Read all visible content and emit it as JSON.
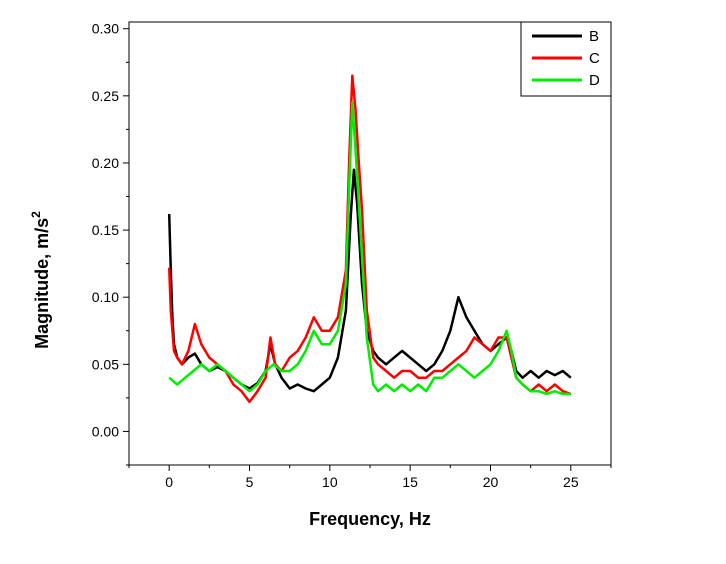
{
  "chart_data": {
    "type": "line",
    "title": "",
    "xlabel": "Frequency, Hz",
    "ylabel_main": "Magnitude, m/s",
    "ylabel_sup": "2",
    "xlim": [
      -2.5,
      27.5
    ],
    "ylim": [
      -0.025,
      0.305
    ],
    "xticks": [
      0,
      5,
      10,
      15,
      20,
      25
    ],
    "xtick_labels": [
      "0",
      "5",
      "10",
      "15",
      "20",
      "25"
    ],
    "yticks": [
      0.0,
      0.05,
      0.1,
      0.15,
      0.2,
      0.25,
      0.3
    ],
    "ytick_labels": [
      "0.00",
      "0.05",
      "0.10",
      "0.15",
      "0.20",
      "0.25",
      "0.30"
    ],
    "legend_position": "top-right",
    "grid": false,
    "series": [
      {
        "name": "B",
        "color": "#000000",
        "points": [
          [
            0.0,
            0.162
          ],
          [
            0.1,
            0.12
          ],
          [
            0.2,
            0.085
          ],
          [
            0.3,
            0.065
          ],
          [
            0.5,
            0.055
          ],
          [
            0.8,
            0.05
          ],
          [
            1.2,
            0.055
          ],
          [
            1.6,
            0.058
          ],
          [
            2.0,
            0.05
          ],
          [
            2.5,
            0.045
          ],
          [
            3.0,
            0.048
          ],
          [
            3.5,
            0.045
          ],
          [
            4.0,
            0.04
          ],
          [
            4.5,
            0.035
          ],
          [
            5.0,
            0.032
          ],
          [
            5.5,
            0.036
          ],
          [
            6.0,
            0.045
          ],
          [
            6.3,
            0.065
          ],
          [
            6.6,
            0.05
          ],
          [
            7.0,
            0.04
          ],
          [
            7.5,
            0.032
          ],
          [
            8.0,
            0.035
          ],
          [
            8.5,
            0.032
          ],
          [
            9.0,
            0.03
          ],
          [
            9.5,
            0.035
          ],
          [
            10.0,
            0.04
          ],
          [
            10.5,
            0.055
          ],
          [
            11.0,
            0.09
          ],
          [
            11.3,
            0.16
          ],
          [
            11.5,
            0.195
          ],
          [
            11.7,
            0.17
          ],
          [
            12.0,
            0.11
          ],
          [
            12.3,
            0.075
          ],
          [
            12.7,
            0.06
          ],
          [
            13.0,
            0.055
          ],
          [
            13.5,
            0.05
          ],
          [
            14.0,
            0.055
          ],
          [
            14.5,
            0.06
          ],
          [
            15.0,
            0.055
          ],
          [
            15.5,
            0.05
          ],
          [
            16.0,
            0.045
          ],
          [
            16.5,
            0.05
          ],
          [
            17.0,
            0.06
          ],
          [
            17.5,
            0.075
          ],
          [
            18.0,
            0.1
          ],
          [
            18.5,
            0.085
          ],
          [
            19.0,
            0.075
          ],
          [
            19.5,
            0.065
          ],
          [
            20.0,
            0.06
          ],
          [
            20.5,
            0.065
          ],
          [
            21.0,
            0.07
          ],
          [
            21.3,
            0.06
          ],
          [
            21.6,
            0.045
          ],
          [
            22.0,
            0.04
          ],
          [
            22.5,
            0.045
          ],
          [
            23.0,
            0.04
          ],
          [
            23.5,
            0.045
          ],
          [
            24.0,
            0.042
          ],
          [
            24.5,
            0.045
          ],
          [
            25.0,
            0.04
          ]
        ]
      },
      {
        "name": "C",
        "color": "#ff0000",
        "points": [
          [
            0.0,
            0.122
          ],
          [
            0.1,
            0.09
          ],
          [
            0.3,
            0.06
          ],
          [
            0.5,
            0.055
          ],
          [
            0.8,
            0.05
          ],
          [
            1.2,
            0.06
          ],
          [
            1.6,
            0.08
          ],
          [
            2.0,
            0.065
          ],
          [
            2.5,
            0.055
          ],
          [
            3.0,
            0.05
          ],
          [
            3.5,
            0.045
          ],
          [
            4.0,
            0.035
          ],
          [
            4.5,
            0.03
          ],
          [
            5.0,
            0.022
          ],
          [
            5.5,
            0.03
          ],
          [
            6.0,
            0.04
          ],
          [
            6.3,
            0.07
          ],
          [
            6.6,
            0.05
          ],
          [
            7.0,
            0.045
          ],
          [
            7.5,
            0.055
          ],
          [
            8.0,
            0.06
          ],
          [
            8.5,
            0.07
          ],
          [
            9.0,
            0.085
          ],
          [
            9.5,
            0.075
          ],
          [
            10.0,
            0.075
          ],
          [
            10.5,
            0.085
          ],
          [
            11.0,
            0.12
          ],
          [
            11.2,
            0.2
          ],
          [
            11.4,
            0.265
          ],
          [
            11.6,
            0.24
          ],
          [
            11.8,
            0.2
          ],
          [
            12.0,
            0.165
          ],
          [
            12.3,
            0.09
          ],
          [
            12.7,
            0.055
          ],
          [
            13.0,
            0.05
          ],
          [
            13.5,
            0.045
          ],
          [
            14.0,
            0.04
          ],
          [
            14.5,
            0.045
          ],
          [
            15.0,
            0.045
          ],
          [
            15.5,
            0.04
          ],
          [
            16.0,
            0.04
          ],
          [
            16.5,
            0.045
          ],
          [
            17.0,
            0.045
          ],
          [
            17.5,
            0.05
          ],
          [
            18.0,
            0.055
          ],
          [
            18.5,
            0.06
          ],
          [
            19.0,
            0.07
          ],
          [
            19.5,
            0.065
          ],
          [
            20.0,
            0.06
          ],
          [
            20.5,
            0.07
          ],
          [
            21.0,
            0.07
          ],
          [
            21.3,
            0.055
          ],
          [
            21.6,
            0.04
          ],
          [
            22.0,
            0.035
          ],
          [
            22.5,
            0.03
          ],
          [
            23.0,
            0.035
          ],
          [
            23.5,
            0.03
          ],
          [
            24.0,
            0.035
          ],
          [
            24.5,
            0.03
          ],
          [
            25.0,
            0.028
          ]
        ]
      },
      {
        "name": "D",
        "color": "#00ee00",
        "points": [
          [
            0.0,
            0.04
          ],
          [
            0.5,
            0.035
          ],
          [
            1.0,
            0.04
          ],
          [
            1.5,
            0.045
          ],
          [
            2.0,
            0.05
          ],
          [
            2.5,
            0.045
          ],
          [
            3.0,
            0.05
          ],
          [
            3.5,
            0.045
          ],
          [
            4.0,
            0.04
          ],
          [
            4.5,
            0.035
          ],
          [
            5.0,
            0.03
          ],
          [
            5.5,
            0.035
          ],
          [
            6.0,
            0.045
          ],
          [
            6.5,
            0.05
          ],
          [
            7.0,
            0.045
          ],
          [
            7.5,
            0.045
          ],
          [
            8.0,
            0.05
          ],
          [
            8.5,
            0.06
          ],
          [
            9.0,
            0.075
          ],
          [
            9.5,
            0.065
          ],
          [
            10.0,
            0.065
          ],
          [
            10.5,
            0.075
          ],
          [
            11.0,
            0.11
          ],
          [
            11.2,
            0.18
          ],
          [
            11.4,
            0.245
          ],
          [
            11.6,
            0.21
          ],
          [
            11.8,
            0.17
          ],
          [
            12.0,
            0.13
          ],
          [
            12.3,
            0.07
          ],
          [
            12.7,
            0.035
          ],
          [
            13.0,
            0.03
          ],
          [
            13.5,
            0.035
          ],
          [
            14.0,
            0.03
          ],
          [
            14.5,
            0.035
          ],
          [
            15.0,
            0.03
          ],
          [
            15.5,
            0.035
          ],
          [
            16.0,
            0.03
          ],
          [
            16.5,
            0.04
          ],
          [
            17.0,
            0.04
          ],
          [
            17.5,
            0.045
          ],
          [
            18.0,
            0.05
          ],
          [
            18.5,
            0.045
          ],
          [
            19.0,
            0.04
          ],
          [
            19.5,
            0.045
          ],
          [
            20.0,
            0.05
          ],
          [
            20.5,
            0.06
          ],
          [
            21.0,
            0.075
          ],
          [
            21.3,
            0.06
          ],
          [
            21.6,
            0.04
          ],
          [
            22.0,
            0.035
          ],
          [
            22.5,
            0.03
          ],
          [
            23.0,
            0.03
          ],
          [
            23.5,
            0.028
          ],
          [
            24.0,
            0.03
          ],
          [
            24.5,
            0.028
          ],
          [
            25.0,
            0.028
          ]
        ]
      }
    ]
  }
}
